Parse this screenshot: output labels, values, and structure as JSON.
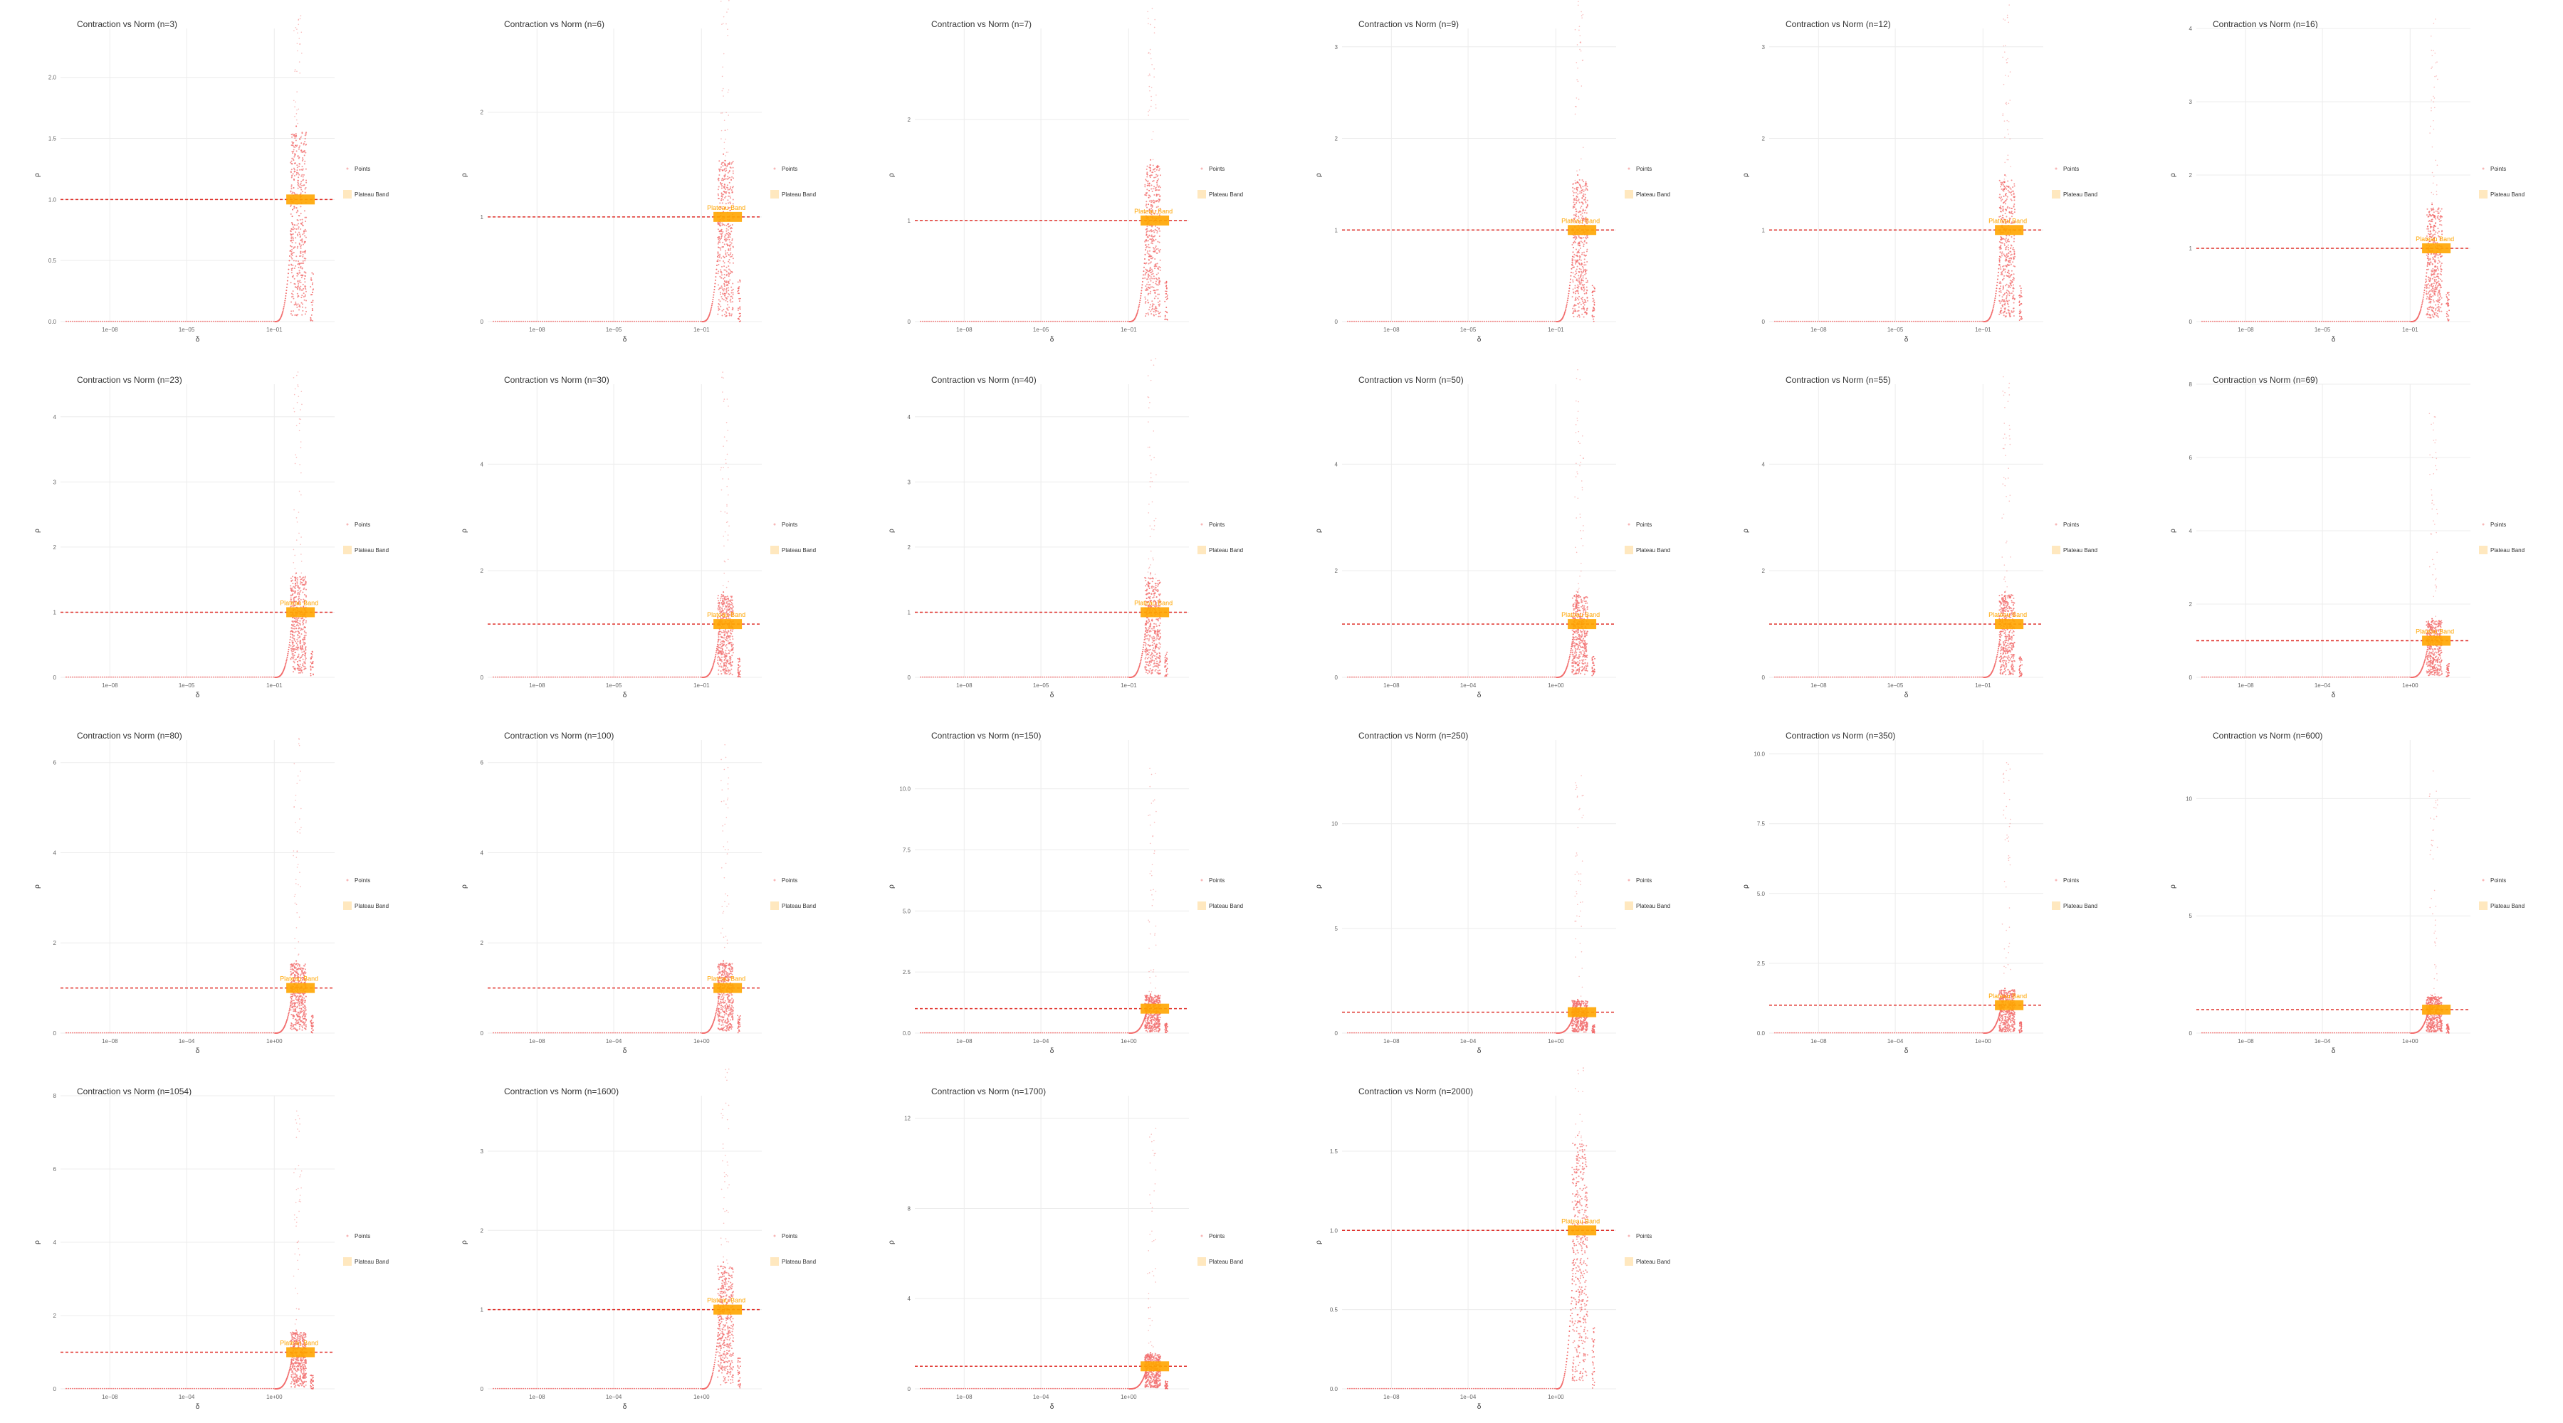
{
  "colors": {
    "points": "#f26d6d",
    "plateau_line": "#e0302a",
    "plateau_band": "#ffa500",
    "grid": "#ececec"
  },
  "chart_data": [
    {
      "type": "scatter",
      "title": "Contraction vs Norm (n=3)",
      "xlabel": "δ",
      "ylabel": "ρ",
      "x_ticks": [
        "1e−08",
        "1e−05",
        "1e−01"
      ],
      "y_ticks": [
        "0.0",
        "0.5",
        "1.0",
        "1.5",
        "2.0"
      ],
      "ylim": [
        0,
        2.4
      ],
      "plateau": 1.0,
      "band_label": "",
      "legend": [
        "Points",
        "Plateau Band"
      ]
    },
    {
      "type": "scatter",
      "title": "Contraction vs Norm (n=6)",
      "xlabel": "δ",
      "ylabel": "ρ",
      "x_ticks": [
        "1e−08",
        "1e−05",
        "1e−01"
      ],
      "y_ticks": [
        "0",
        "1",
        "2"
      ],
      "ylim": [
        0,
        2.8
      ],
      "plateau": 1.0,
      "band_label": "Plateau Band",
      "legend": [
        "Points",
        "Plateau Band"
      ]
    },
    {
      "type": "scatter",
      "title": "Contraction vs Norm (n=7)",
      "xlabel": "δ",
      "ylabel": "ρ",
      "x_ticks": [
        "1e−08",
        "1e−05",
        "1e−01"
      ],
      "y_ticks": [
        "0",
        "1",
        "2"
      ],
      "ylim": [
        0,
        2.9
      ],
      "plateau": 1.0,
      "band_label": "Plateau Band",
      "legend": [
        "Points",
        "Plateau Band"
      ]
    },
    {
      "type": "scatter",
      "title": "Contraction vs Norm (n=9)",
      "xlabel": "δ",
      "ylabel": "ρ",
      "x_ticks": [
        "1e−08",
        "1e−05",
        "1e−01"
      ],
      "y_ticks": [
        "0",
        "1",
        "2",
        "3"
      ],
      "ylim": [
        0,
        3.2
      ],
      "plateau": 1.0,
      "band_label": "Plateau Band",
      "legend": [
        "Points",
        "Plateau Band"
      ]
    },
    {
      "type": "scatter",
      "title": "Contraction vs Norm (n=12)",
      "xlabel": "δ",
      "ylabel": "ρ",
      "x_ticks": [
        "1e−08",
        "1e−05",
        "1e−01"
      ],
      "y_ticks": [
        "0",
        "1",
        "2",
        "3"
      ],
      "ylim": [
        0,
        3.2
      ],
      "plateau": 1.0,
      "band_label": "Plateau Band",
      "legend": [
        "Points",
        "Plateau Band"
      ]
    },
    {
      "type": "scatter",
      "title": "Contraction vs Norm (n=16)",
      "xlabel": "δ",
      "ylabel": "ρ",
      "x_ticks": [
        "1e−08",
        "1e−05",
        "1e−01"
      ],
      "y_ticks": [
        "0",
        "1",
        "2",
        "3",
        "4"
      ],
      "ylim": [
        0,
        4.0
      ],
      "plateau": 1.0,
      "band_label": "Plateau Band",
      "legend": [
        "Points",
        "Plateau Band"
      ]
    },
    {
      "type": "scatter",
      "title": "Contraction vs Norm (n=23)",
      "xlabel": "δ",
      "ylabel": "ρ",
      "x_ticks": [
        "1e−08",
        "1e−05",
        "1e−01"
      ],
      "y_ticks": [
        "0",
        "1",
        "2",
        "3",
        "4"
      ],
      "ylim": [
        0,
        4.5
      ],
      "plateau": 1.0,
      "band_label": "Plateau Band",
      "legend": [
        "Points",
        "Plateau Band"
      ]
    },
    {
      "type": "scatter",
      "title": "Contraction vs Norm (n=30)",
      "xlabel": "δ",
      "ylabel": "ρ",
      "x_ticks": [
        "1e−08",
        "1e−05",
        "1e−01"
      ],
      "y_ticks": [
        "0",
        "2",
        "4"
      ],
      "ylim": [
        0,
        5.5
      ],
      "plateau": 1.0,
      "band_label": "Plateau Band",
      "legend": [
        "Points",
        "Plateau Band"
      ]
    },
    {
      "type": "scatter",
      "title": "Contraction vs Norm (n=40)",
      "xlabel": "δ",
      "ylabel": "ρ",
      "x_ticks": [
        "1e−08",
        "1e−05",
        "1e−01"
      ],
      "y_ticks": [
        "0",
        "1",
        "2",
        "3",
        "4"
      ],
      "ylim": [
        0,
        4.5
      ],
      "plateau": 1.0,
      "band_label": "Plateau Band",
      "legend": [
        "Points",
        "Plateau Band"
      ]
    },
    {
      "type": "scatter",
      "title": "Contraction vs Norm (n=50)",
      "xlabel": "δ",
      "ylabel": "ρ",
      "x_ticks": [
        "1e−08",
        "1e−04",
        "1e+00"
      ],
      "y_ticks": [
        "0",
        "2",
        "4"
      ],
      "ylim": [
        0,
        5.5
      ],
      "plateau": 1.0,
      "band_label": "Plateau Band",
      "legend": [
        "Points",
        "Plateau Band"
      ]
    },
    {
      "type": "scatter",
      "title": "Contraction vs Norm (n=55)",
      "xlabel": "δ",
      "ylabel": "ρ",
      "x_ticks": [
        "1e−08",
        "1e−05",
        "1e−01"
      ],
      "y_ticks": [
        "0",
        "2",
        "4"
      ],
      "ylim": [
        0,
        5.5
      ],
      "plateau": 1.0,
      "band_label": "Plateau Band",
      "legend": [
        "Points",
        "Plateau Band"
      ]
    },
    {
      "type": "scatter",
      "title": "Contraction vs Norm (n=69)",
      "xlabel": "δ",
      "ylabel": "ρ",
      "x_ticks": [
        "1e−08",
        "1e−04",
        "1e+00"
      ],
      "y_ticks": [
        "0",
        "2",
        "4",
        "6",
        "8"
      ],
      "ylim": [
        0,
        8.0
      ],
      "plateau": 1.0,
      "band_label": "Plateau Band",
      "legend": [
        "Points",
        "Plateau Band"
      ]
    },
    {
      "type": "scatter",
      "title": "Contraction vs Norm (n=80)",
      "xlabel": "δ",
      "ylabel": "ρ",
      "x_ticks": [
        "1e−08",
        "1e−04",
        "1e+00"
      ],
      "y_ticks": [
        "0",
        "2",
        "4",
        "6"
      ],
      "ylim": [
        0,
        6.5
      ],
      "plateau": 1.0,
      "band_label": "Plateau Band",
      "legend": [
        "Points",
        "Plateau Band"
      ]
    },
    {
      "type": "scatter",
      "title": "Contraction vs Norm (n=100)",
      "xlabel": "δ",
      "ylabel": "ρ",
      "x_ticks": [
        "1e−08",
        "1e−04",
        "1e+00"
      ],
      "y_ticks": [
        "0",
        "2",
        "4",
        "6"
      ],
      "ylim": [
        0,
        6.5
      ],
      "plateau": 1.0,
      "band_label": "Plateau Band",
      "legend": [
        "Points",
        "Plateau Band"
      ]
    },
    {
      "type": "scatter",
      "title": "Contraction vs Norm (n=150)",
      "xlabel": "δ",
      "ylabel": "ρ",
      "x_ticks": [
        "1e−08",
        "1e−04",
        "1e+00"
      ],
      "y_ticks": [
        "0.0",
        "2.5",
        "5.0",
        "7.5",
        "10.0"
      ],
      "ylim": [
        0,
        12.0
      ],
      "plateau": 1.0,
      "band_label": "",
      "legend": [
        "Points",
        "Plateau Band"
      ]
    },
    {
      "type": "scatter",
      "title": "Contraction vs Norm (n=250)",
      "xlabel": "δ",
      "ylabel": "ρ",
      "x_ticks": [
        "1e−08",
        "1e−04",
        "1e+00"
      ],
      "y_ticks": [
        "0",
        "5",
        "10"
      ],
      "ylim": [
        0,
        14.0
      ],
      "plateau": 1.0,
      "band_label": "",
      "legend": [
        "Points",
        "Plateau Band"
      ]
    },
    {
      "type": "scatter",
      "title": "Contraction vs Norm (n=350)",
      "xlabel": "δ",
      "ylabel": "ρ",
      "x_ticks": [
        "1e−08",
        "1e−04",
        "1e+00"
      ],
      "y_ticks": [
        "0.0",
        "2.5",
        "5.0",
        "7.5",
        "10.0"
      ],
      "ylim": [
        0,
        10.5
      ],
      "plateau": 1.0,
      "band_label": "Plateau Band",
      "legend": [
        "Points",
        "Plateau Band"
      ]
    },
    {
      "type": "scatter",
      "title": "Contraction vs Norm (n=600)",
      "xlabel": "δ",
      "ylabel": "ρ",
      "x_ticks": [
        "1e−08",
        "1e−04",
        "1e+00"
      ],
      "y_ticks": [
        "0",
        "5",
        "10"
      ],
      "ylim": [
        0,
        12.5
      ],
      "plateau": 1.0,
      "band_label": "",
      "legend": [
        "Points",
        "Plateau Band"
      ]
    },
    {
      "type": "scatter",
      "title": "Contraction vs Norm (n=1054)",
      "xlabel": "δ",
      "ylabel": "ρ",
      "x_ticks": [
        "1e−08",
        "1e−04",
        "1e+00"
      ],
      "y_ticks": [
        "0",
        "2",
        "4",
        "6",
        "8"
      ],
      "ylim": [
        0,
        8.0
      ],
      "plateau": 1.0,
      "band_label": "Plateau Band",
      "legend": [
        "Points",
        "Plateau Band"
      ]
    },
    {
      "type": "scatter",
      "title": "Contraction vs Norm (n=1600)",
      "xlabel": "δ",
      "ylabel": "ρ",
      "x_ticks": [
        "1e−08",
        "1e−04",
        "1e+00"
      ],
      "y_ticks": [
        "0",
        "1",
        "2",
        "3"
      ],
      "ylim": [
        0,
        3.7
      ],
      "plateau": 1.0,
      "band_label": "Plateau Band",
      "legend": [
        "Points",
        "Plateau Band"
      ]
    },
    {
      "type": "scatter",
      "title": "Contraction vs Norm (n=1700)",
      "xlabel": "δ",
      "ylabel": "ρ",
      "x_ticks": [
        "1e−08",
        "1e−04",
        "1e+00"
      ],
      "y_ticks": [
        "0",
        "4",
        "8",
        "12"
      ],
      "ylim": [
        0,
        13.0
      ],
      "plateau": 1.0,
      "band_label": "",
      "legend": [
        "Points",
        "Plateau Band"
      ]
    },
    {
      "type": "scatter",
      "title": "Contraction vs Norm (n=2000)",
      "xlabel": "δ",
      "ylabel": "ρ",
      "x_ticks": [
        "1e−08",
        "1e−04",
        "1e+00"
      ],
      "y_ticks": [
        "0.0",
        "0.5",
        "1.0",
        "1.5"
      ],
      "ylim": [
        0,
        1.85
      ],
      "plateau": 1.0,
      "band_label": "Plateau Band",
      "legend": [
        "Points",
        "Plateau Band"
      ]
    }
  ]
}
